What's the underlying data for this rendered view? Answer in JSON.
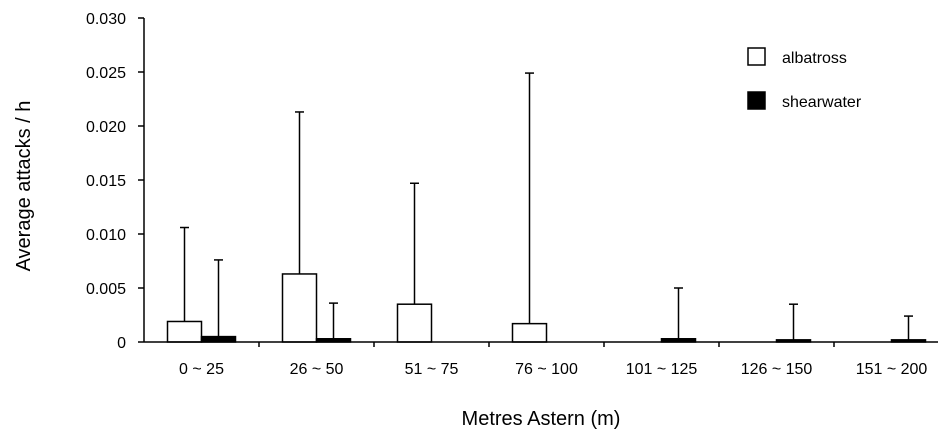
{
  "chart_data": {
    "type": "bar",
    "title": "",
    "xlabel": "Metres Astern (m)",
    "ylabel": "Average attacks / h",
    "categories": [
      "0 ~ 25",
      "26 ~ 50",
      "51 ~ 75",
      "76 ~ 100",
      "101 ~ 125",
      "126 ~ 150",
      "151 ~ 200"
    ],
    "series": [
      {
        "name": "albatross",
        "color": "#ffffff",
        "values": [
          0.0019,
          0.0063,
          0.0035,
          0.0017,
          0.0,
          0.0,
          0.0
        ],
        "error_upper": [
          0.0106,
          0.0213,
          0.0147,
          0.0249,
          null,
          null,
          null
        ]
      },
      {
        "name": "shearwater",
        "color": "#000000",
        "values": [
          0.0005,
          0.0003,
          0.0,
          0.0,
          0.0003,
          0.0002,
          0.0002
        ],
        "error_upper": [
          0.0076,
          0.0036,
          null,
          null,
          0.005,
          0.0035,
          0.0024
        ]
      }
    ],
    "yticks": [
      "0",
      "0.005",
      "0.010",
      "0.015",
      "0.020",
      "0.025",
      "0.030"
    ],
    "ylim": [
      0,
      0.03
    ],
    "grid": false,
    "legend_position": "top-right"
  }
}
